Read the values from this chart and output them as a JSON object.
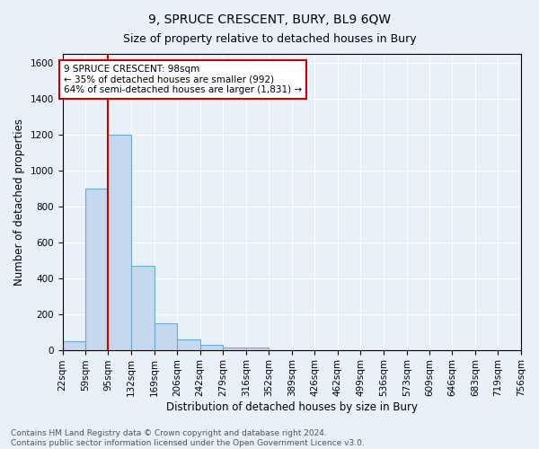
{
  "title": "9, SPRUCE CRESCENT, BURY, BL9 6QW",
  "subtitle": "Size of property relative to detached houses in Bury",
  "xlabel": "Distribution of detached houses by size in Bury",
  "ylabel": "Number of detached properties",
  "bins": [
    22,
    59,
    95,
    132,
    169,
    206,
    242,
    279,
    316,
    352,
    389,
    426,
    462,
    499,
    536,
    573,
    609,
    646,
    683,
    719,
    756
  ],
  "counts": [
    50,
    900,
    1200,
    470,
    150,
    60,
    30,
    15,
    15,
    0,
    0,
    0,
    0,
    0,
    0,
    0,
    0,
    0,
    0,
    0
  ],
  "bar_color": "#c5d8ee",
  "bar_edge_color": "#6aaad4",
  "vline_x": 95,
  "vline_color": "#cc0000",
  "ylim": [
    0,
    1650
  ],
  "yticks": [
    0,
    200,
    400,
    600,
    800,
    1000,
    1200,
    1400,
    1600
  ],
  "annotation_text": "9 SPRUCE CRESCENT: 98sqm\n← 35% of detached houses are smaller (992)\n64% of semi-detached houses are larger (1,831) →",
  "annotation_box_color": "#ffffff",
  "annotation_box_edge": "#cc0000",
  "footer1": "Contains HM Land Registry data © Crown copyright and database right 2024.",
  "footer2": "Contains public sector information licensed under the Open Government Licence v3.0.",
  "background_color": "#e8f0f8",
  "grid_color": "#ffffff",
  "title_fontsize": 10,
  "subtitle_fontsize": 9,
  "axis_label_fontsize": 8.5,
  "tick_fontsize": 7.5,
  "annotation_fontsize": 7.5,
  "footer_fontsize": 6.5
}
